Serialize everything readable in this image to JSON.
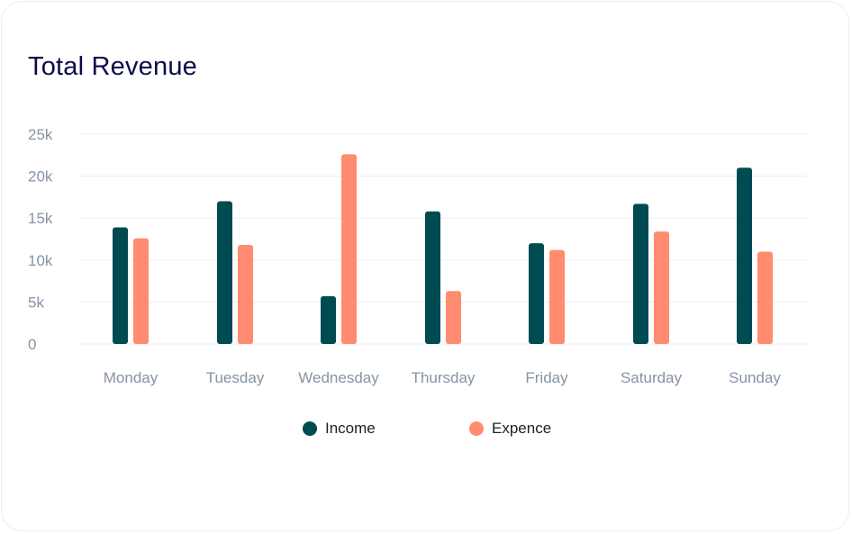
{
  "chart_data": {
    "type": "bar",
    "title": "Total Revenue",
    "xlabel": "",
    "ylabel": "",
    "categories": [
      "Monday",
      "Tuesday",
      "Wednesday",
      "Thursday",
      "Friday",
      "Saturday",
      "Sunday"
    ],
    "series": [
      {
        "name": "Income",
        "color": "#004a52",
        "values": [
          13900,
          17000,
          5700,
          15800,
          12000,
          16700,
          21000
        ]
      },
      {
        "name": "Expence",
        "color": "#ff8c6e",
        "values": [
          12600,
          11800,
          22600,
          6300,
          11200,
          13400,
          11000
        ]
      }
    ],
    "ylim": [
      0,
      25000
    ],
    "yticks": [
      0,
      5000,
      10000,
      15000,
      20000,
      25000
    ],
    "ytick_labels": [
      "0",
      "5k",
      "10k",
      "15k",
      "20k",
      "25k"
    ],
    "grid": true,
    "legend_position": "bottom-center"
  }
}
